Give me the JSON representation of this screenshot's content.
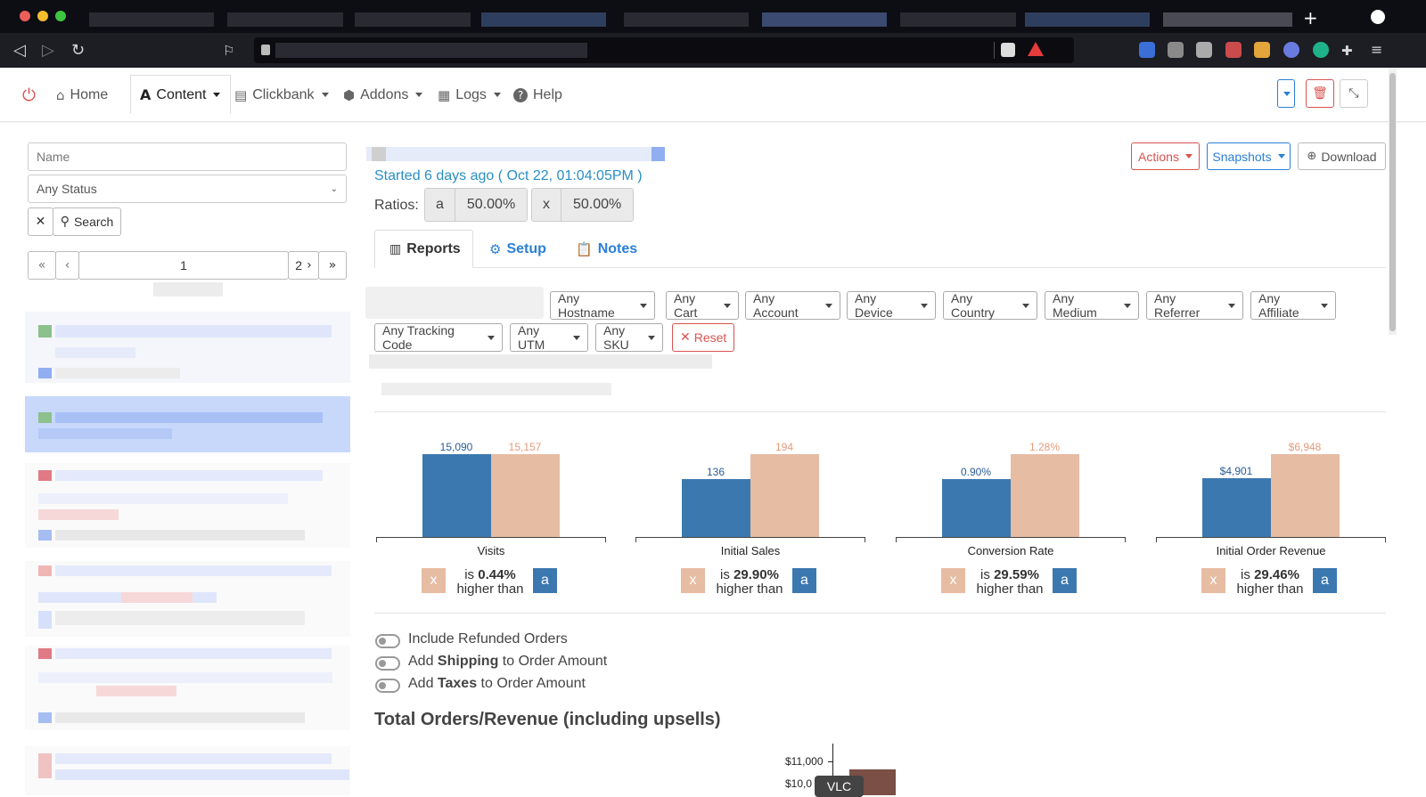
{
  "nav": {
    "home": "Home",
    "content": "Content",
    "clickbank": "Clickbank",
    "addons": "Addons",
    "logs": "Logs",
    "help": "Help"
  },
  "sidebar": {
    "name_placeholder": "Name",
    "status_value": "Any Status",
    "search_label": "Search",
    "page_current": "1",
    "page_next": "2"
  },
  "header": {
    "started": "Started 6 days ago ( Oct 22, 01:04:05PM )",
    "ratios_label": "Ratios:",
    "ratios": [
      {
        "variant": "a",
        "value": "50.00%"
      },
      {
        "variant": "x",
        "value": "50.00%"
      }
    ],
    "actions": "Actions",
    "snapshots": "Snapshots",
    "download": "Download"
  },
  "tabs": [
    {
      "label": "Reports"
    },
    {
      "label": "Setup"
    },
    {
      "label": "Notes"
    }
  ],
  "filters": {
    "row1": [
      "Any Hostname",
      "Any Cart",
      "Any Account",
      "Any Device",
      "Any Country",
      "Any Medium",
      "Any Referrer",
      "Any Affiliate"
    ],
    "row2": [
      "Any Tracking Code",
      "Any UTM",
      "Any SKU"
    ],
    "reset": "Reset"
  },
  "metrics": [
    {
      "name": "Visits",
      "x_label": "15,090",
      "a_label": "15,157",
      "x_value": 15090,
      "a_value": 15157,
      "pct": "0.44%"
    },
    {
      "name": "Initial Sales",
      "x_label": "136",
      "a_label": "194",
      "x_value": 136,
      "a_value": 194,
      "pct": "29.90%"
    },
    {
      "name": "Conversion Rate",
      "x_label": "0.90%",
      "a_label": "1.28%",
      "x_value": 0.9,
      "a_value": 1.28,
      "pct": "29.59%"
    },
    {
      "name": "Initial Order Revenue",
      "x_label": "$4,901",
      "a_label": "$6,948",
      "x_value": 4901,
      "a_value": 6948,
      "pct": "29.46%"
    }
  ],
  "comparison": {
    "is": "is",
    "higher_than": "higher than",
    "left_variant": "x",
    "right_variant": "a"
  },
  "toggles": [
    {
      "pre": "Include Refunded Orders",
      "bold": "",
      "post": ""
    },
    {
      "pre": "Add ",
      "bold": "Shipping",
      "post": " to Order Amount"
    },
    {
      "pre": "Add ",
      "bold": "Taxes",
      "post": " to Order Amount"
    }
  ],
  "revenue_section": {
    "title": "Total Orders/Revenue (including upsells)",
    "tick_11000": "$11,000",
    "tick_10000": "$10,0",
    "tooltip": "VLC"
  },
  "colors": {
    "x_bar": "#3c78b0",
    "a_bar": "#e6bca3",
    "x_label": "#2a5c96",
    "a_label": "#e59b7a",
    "danger": "#d9534f",
    "primary": "#2a7fd6"
  }
}
